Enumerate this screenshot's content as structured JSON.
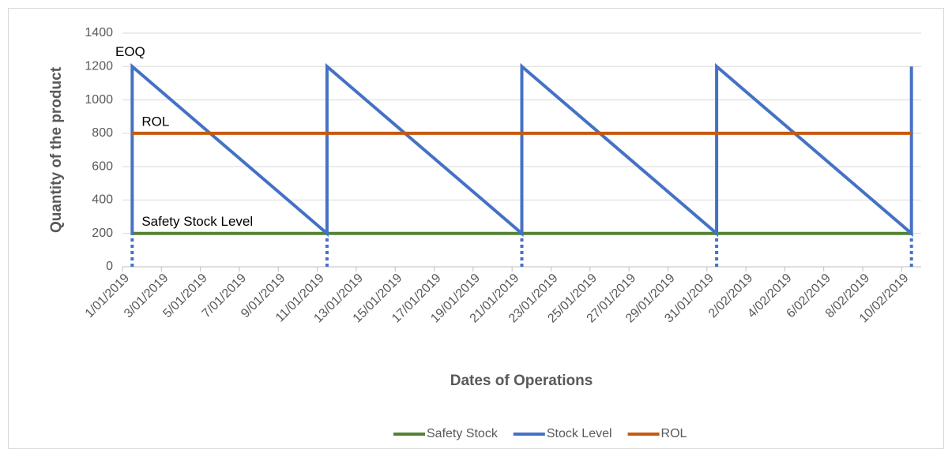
{
  "chart_data": {
    "type": "line",
    "xlabel": "Dates of Operations",
    "ylabel": "Quantity of the product",
    "categories": [
      "1/01/2019",
      null,
      "3/01/2019",
      null,
      "5/01/2019",
      null,
      "7/01/2019",
      null,
      "9/01/2019",
      null,
      "11/01/2019",
      null,
      "13/01/2019",
      null,
      "15/01/2019",
      null,
      "17/01/2019",
      null,
      "19/01/2019",
      null,
      "21/01/2019",
      null,
      "23/01/2019",
      null,
      "25/01/2019",
      null,
      "27/01/2019",
      null,
      "29/01/2019",
      null,
      "31/01/2019",
      null,
      "2/02/2019",
      null,
      "4/02/2019",
      null,
      "6/02/2019",
      null,
      "8/02/2019",
      null,
      "10/02/2019"
    ],
    "series": [
      {
        "name": "Safety Stock",
        "color": "#548235",
        "values": [
          200,
          200,
          200,
          200,
          200,
          200,
          200,
          200,
          200,
          200,
          200,
          200,
          200,
          200,
          200,
          200,
          200,
          200,
          200,
          200,
          200,
          200,
          200,
          200,
          200,
          200,
          200,
          200,
          200,
          200,
          200,
          200,
          200,
          200,
          200,
          200,
          200,
          200,
          200,
          200,
          200
        ]
      },
      {
        "name": "Stock Level",
        "color": "#4472c4",
        "x": [
          0,
          0,
          10,
          10,
          20,
          20,
          30,
          30,
          40,
          40
        ],
        "values": [
          200,
          1200,
          200,
          1200,
          200,
          1200,
          200,
          1200,
          200,
          1200
        ]
      },
      {
        "name": "ROL",
        "color": "#c55a11",
        "values": [
          800,
          800,
          800,
          800,
          800,
          800,
          800,
          800,
          800,
          800,
          800,
          800,
          800,
          800,
          800,
          800,
          800,
          800,
          800,
          800,
          800,
          800,
          800,
          800,
          800,
          800,
          800,
          800,
          800,
          800,
          800,
          800,
          800,
          800,
          800,
          800,
          800,
          800,
          800,
          800,
          800
        ]
      }
    ],
    "annotations": [
      "EOQ",
      "ROL",
      "Safety Stock Level"
    ],
    "ylim": [
      0,
      1400
    ],
    "yticks": [
      0,
      200,
      400,
      600,
      800,
      1000,
      1200,
      1400
    ],
    "grid": true,
    "legend": "bottom"
  }
}
